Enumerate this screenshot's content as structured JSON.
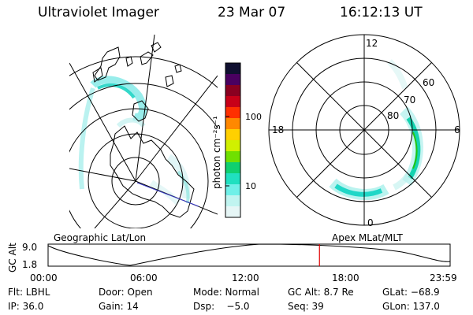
{
  "header": {
    "instrument": "Ultraviolet Imager",
    "date": "23 Mar 07",
    "time": "16:12:13 UT"
  },
  "colorbar": {
    "unit_label": "photon cm⁻²s⁻¹",
    "ticks": [
      "100",
      "10"
    ],
    "colors": [
      "#101030",
      "#4a0060",
      "#8a0020",
      "#c80018",
      "#ff3000",
      "#ff8800",
      "#ffd000",
      "#d0f000",
      "#70e000",
      "#10d070",
      "#20e0c0",
      "#70f0e8",
      "#c0f4f0",
      "#e6f6f6"
    ]
  },
  "geo_panel": {
    "label": "Geographic Lat/Lon"
  },
  "polar_panel": {
    "label": "Apex MLat/MLT",
    "mlt_labels": [
      "12",
      "18",
      "6",
      "0"
    ],
    "mlat_labels": [
      "60",
      "70",
      "80"
    ]
  },
  "timeline": {
    "y_axis_label": "GC Alt",
    "y_ticks": [
      "9.0",
      "1.8"
    ],
    "x_ticks": [
      "00:00",
      "06:00",
      "12:00",
      "18:00",
      "23:59"
    ],
    "current_time_fraction": 0.675,
    "marker_color": "#e00000"
  },
  "info": {
    "row1": [
      "Flt: LBHL",
      "Door: Open",
      "Mode: Normal",
      "GC Alt: 8.7 Re",
      "GLat: −68.9"
    ],
    "row2": [
      "IP: 36.0",
      "Gain: 14",
      "Dsp:    −5.0",
      "Seq: 39",
      "GLon: 137.0"
    ]
  }
}
